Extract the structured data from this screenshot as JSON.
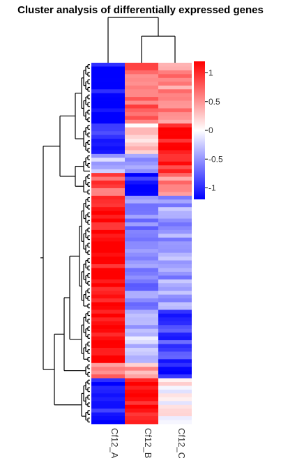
{
  "chart_data": {
    "type": "heatmap",
    "title": "Cluster analysis of differentially expressed genes",
    "columns": [
      "Cf12_A",
      "Cf12_B",
      "Cf12_C"
    ],
    "column_dendrogram": "(Cf12_A,(Cf12_B,Cf12_C))",
    "row_dendrogram": "shown on left",
    "color_scale": {
      "min": -1.2,
      "max": 1.2,
      "low_color": "#0000ff",
      "mid_color": "#ffffff",
      "high_color": "#ff0000",
      "ticks": [
        1,
        0.5,
        0,
        -0.5,
        -1
      ],
      "tick_labels": [
        "1",
        "0.5",
        "0",
        "-0.5",
        "-1"
      ]
    },
    "row_blocks": [
      {
        "rows": 16,
        "values": [
          -1.15,
          0.7,
          0.55
        ]
      },
      {
        "rows": 8,
        "values": [
          -1.0,
          0.2,
          1.1
        ]
      },
      {
        "rows": 5,
        "values": [
          -0.3,
          -0.6,
          1.0
        ]
      },
      {
        "rows": 6,
        "values": [
          0.8,
          -1.1,
          0.6
        ]
      },
      {
        "rows": 30,
        "values": [
          1.15,
          -0.6,
          -0.45
        ]
      },
      {
        "rows": 14,
        "values": [
          1.2,
          -0.3,
          -0.9
        ]
      },
      {
        "rows": 4,
        "values": [
          0.6,
          0.4,
          -1.05
        ]
      },
      {
        "rows": 12,
        "values": [
          -1.05,
          1.15,
          0.05
        ]
      }
    ]
  }
}
